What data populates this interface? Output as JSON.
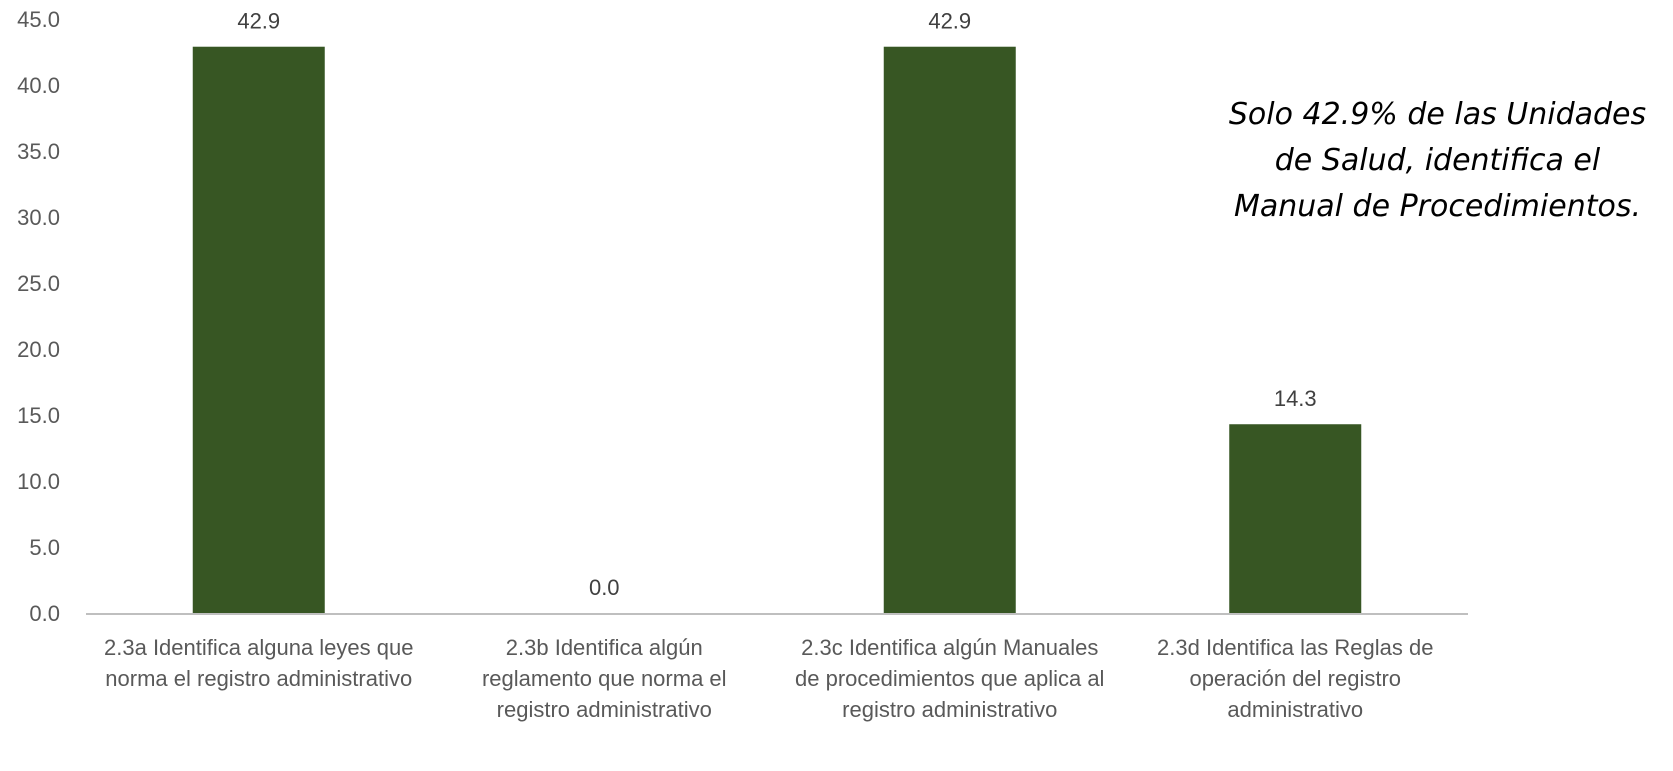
{
  "chart_data": {
    "type": "bar",
    "categories": [
      [
        "2.3a  Identifica alguna leyes que",
        "norma el registro administrativo"
      ],
      [
        "2.3b  Identifica algún",
        "reglamento que norma el",
        "registro administrativo"
      ],
      [
        "2.3c  Identifica algún Manuales",
        "de procedimientos que aplica al",
        "registro administrativo"
      ],
      [
        "2.3d  Identifica las Reglas de",
        "operación del registro",
        "administrativo"
      ]
    ],
    "values": [
      42.9,
      0.0,
      42.9,
      14.3
    ],
    "data_labels": [
      "42.9",
      "0.0",
      "42.9",
      "14.3"
    ],
    "ylim": [
      0,
      45
    ],
    "yticks": [
      0,
      5,
      10,
      15,
      20,
      25,
      30,
      35,
      40,
      45
    ],
    "ytick_labels": [
      "0.0",
      "5.0",
      "10.0",
      "15.0",
      "20.0",
      "25.0",
      "30.0",
      "35.0",
      "40.0",
      "45.0"
    ],
    "grid": false,
    "bar_color": "#375623",
    "axis_color": "#bfbfbf",
    "annotation_lines": [
      "Solo 42.9% de las Unidades",
      "de Salud, identifica el",
      "Manual de Procedimientos."
    ]
  }
}
